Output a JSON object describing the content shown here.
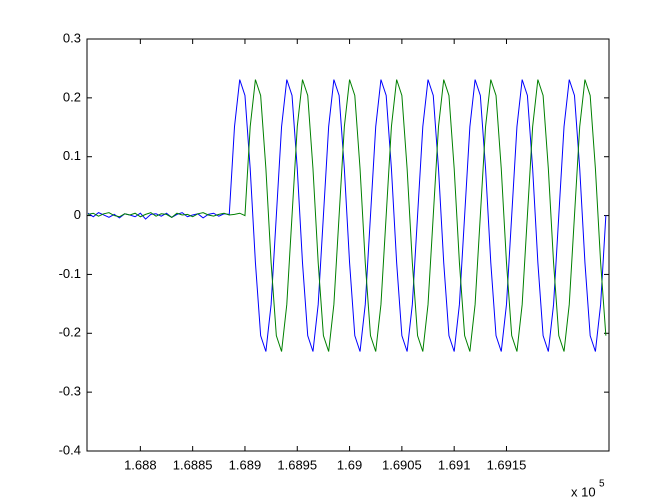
{
  "chart_data": {
    "type": "line",
    "x": [
      168750,
      168755,
      168760,
      168765,
      168770,
      168775,
      168780,
      168785,
      168790,
      168795,
      168800,
      168805,
      168810,
      168815,
      168820,
      168825,
      168830,
      168835,
      168840,
      168845,
      168850,
      168855,
      168860,
      168865,
      168870,
      168875,
      168880,
      168885,
      168890,
      168895,
      168900,
      168905,
      168910,
      168915,
      168920,
      168925,
      168930,
      168935,
      168940,
      168945,
      168950,
      168955,
      168960,
      168965,
      168970,
      168975,
      168980,
      168985,
      168990,
      168995,
      169000,
      169005,
      169010,
      169015,
      169020,
      169025,
      169030,
      169035,
      169040,
      169045,
      169050,
      169055,
      169060,
      169065,
      169070,
      169075,
      169080,
      169085,
      169090,
      169095,
      169100,
      169105,
      169110,
      169115,
      169120,
      169125,
      169130,
      169135,
      169140,
      169145,
      169150,
      169155,
      169160,
      169165,
      169170,
      169175,
      169180,
      169185,
      169190,
      169195,
      169200,
      169205,
      169210,
      169215,
      169220,
      169225,
      169230,
      169235,
      169240,
      169245
    ],
    "series": [
      {
        "color": "#0000ff",
        "values": [
          0.004,
          -0.002,
          0.005,
          0.001,
          -0.003,
          0.002,
          -0.004,
          0.003,
          0.001,
          -0.002,
          0.004,
          -0.006,
          0.002,
          0.003,
          -0.001,
          0.004,
          -0.003,
          0.002,
          0.005,
          -0.002,
          0.001,
          0.003,
          -0.004,
          0.002,
          0.004,
          -0.001,
          0.003,
          0.002,
          0.151,
          0.231,
          0.204,
          0.08,
          -0.08,
          -0.204,
          -0.231,
          -0.151,
          0,
          0.151,
          0.231,
          0.204,
          0.08,
          -0.08,
          -0.204,
          -0.231,
          -0.151,
          0,
          0.151,
          0.231,
          0.204,
          0.08,
          -0.08,
          -0.204,
          -0.231,
          -0.151,
          0,
          0.151,
          0.231,
          0.204,
          0.08,
          -0.08,
          -0.204,
          -0.231,
          -0.151,
          0,
          0.151,
          0.231,
          0.204,
          0.08,
          -0.08,
          -0.204,
          -0.231,
          -0.151,
          0,
          0.151,
          0.231,
          0.204,
          0.08,
          -0.08,
          -0.204,
          -0.231,
          -0.151,
          0,
          0.151,
          0.231,
          0.204,
          0.08,
          -0.08,
          -0.204,
          -0.231,
          -0.151,
          0,
          0.151,
          0.231,
          0.204,
          0.08,
          -0.08,
          -0.204,
          -0.231,
          -0.151,
          0
        ]
      },
      {
        "color": "#008000",
        "values": [
          0.002,
          0.004,
          -0.001,
          0.003,
          0.005,
          0,
          -0.002,
          0.003,
          0.001,
          0.004,
          -0.002,
          0.002,
          0.005,
          -0.001,
          0.003,
          0.002,
          -0.003,
          0.004,
          0.001,
          0.002,
          -0.002,
          0.003,
          0.005,
          0.001,
          -0.001,
          0.002,
          0.004,
          0.001,
          0.002,
          0.004,
          0,
          0.151,
          0.231,
          0.204,
          0.08,
          -0.08,
          -0.204,
          -0.231,
          -0.151,
          0,
          0.151,
          0.231,
          0.204,
          0.08,
          -0.08,
          -0.204,
          -0.231,
          -0.151,
          0,
          0.151,
          0.231,
          0.204,
          0.08,
          -0.08,
          -0.204,
          -0.231,
          -0.151,
          0,
          0.151,
          0.231,
          0.204,
          0.08,
          -0.08,
          -0.204,
          -0.231,
          -0.151,
          0,
          0.151,
          0.231,
          0.204,
          0.08,
          -0.08,
          -0.204,
          -0.231,
          -0.151,
          0,
          0.151,
          0.231,
          0.204,
          0.08,
          -0.08,
          -0.204,
          -0.231,
          -0.151,
          0,
          0.151,
          0.231,
          0.204,
          0.08,
          -0.08,
          -0.204,
          -0.231,
          -0.151,
          0,
          0.151,
          0.231,
          0.204,
          0.08,
          -0.08,
          -0.204
        ]
      }
    ],
    "xlim": [
      168749,
      169248
    ],
    "xticks": [
      {
        "value": 168800,
        "label": "1.688"
      },
      {
        "value": 168850,
        "label": "1.6885"
      },
      {
        "value": 168900,
        "label": "1.689"
      },
      {
        "value": 168950,
        "label": "1.6895"
      },
      {
        "value": 169000,
        "label": "1.69"
      },
      {
        "value": 169050,
        "label": "1.6905"
      },
      {
        "value": 169100,
        "label": "1.691"
      },
      {
        "value": 169150,
        "label": "1.6915"
      }
    ],
    "x_multiplier": "x 10",
    "x_multiplier_exponent": "5",
    "ylim": [
      -0.4,
      0.3
    ],
    "yticks": [
      -0.4,
      -0.3,
      -0.2,
      -0.1,
      0,
      0.1,
      0.2,
      0.3
    ],
    "grid": false
  }
}
